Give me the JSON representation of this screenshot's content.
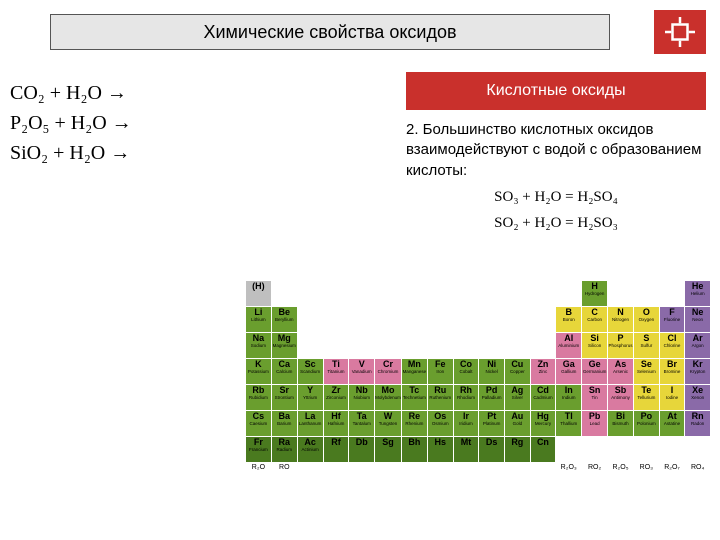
{
  "title": "Химические свойства оксидов",
  "reactions": [
    "CO₂ + H₂O →",
    "P₂O₅ + H₂O →",
    "SiO₂ + H₂O →"
  ],
  "acid_header": "Кислотные оксиды",
  "explain_text": "2. Большинство кислотных оксидов взаимодействуют с водой с образованием кислоты:",
  "equations": [
    "SO₃ + H₂O = H₂SO₄",
    "SO₂ + H₂O = H₂SO₃"
  ],
  "colors": {
    "green": "#6a9e2e",
    "dgreen": "#4a7a1f",
    "yellow": "#e7d63a",
    "red": "#d9534f",
    "purple": "#8a6aa8",
    "gray": "#bfbfbf",
    "pink": "#d97aa0",
    "blue": "#6aa0c4"
  },
  "ptable": [
    [
      {
        "s": "(H)",
        "c": "gray"
      },
      null,
      null,
      null,
      null,
      null,
      null,
      null,
      null,
      null,
      null,
      null,
      null,
      {
        "s": "H",
        "n": "Hydrogen",
        "c": "green"
      },
      null,
      null,
      null,
      {
        "s": "He",
        "n": "Helium",
        "c": "purple"
      }
    ],
    [
      {
        "s": "Li",
        "n": "Lithium",
        "c": "green"
      },
      {
        "s": "Be",
        "n": "Beryllium",
        "c": "green"
      },
      null,
      null,
      null,
      null,
      null,
      null,
      null,
      null,
      null,
      null,
      {
        "s": "B",
        "n": "Boron",
        "c": "yellow"
      },
      {
        "s": "C",
        "n": "Carbon",
        "c": "yellow"
      },
      {
        "s": "N",
        "n": "Nitrogen",
        "c": "yellow"
      },
      {
        "s": "O",
        "n": "Oxygen",
        "c": "yellow"
      },
      {
        "s": "F",
        "n": "Fluorine",
        "c": "purple"
      },
      {
        "s": "Ne",
        "n": "Neon",
        "c": "purple"
      }
    ],
    [
      {
        "s": "Na",
        "n": "Sodium",
        "c": "green"
      },
      {
        "s": "Mg",
        "n": "Magnesium",
        "c": "green"
      },
      null,
      null,
      null,
      null,
      null,
      null,
      null,
      null,
      null,
      null,
      {
        "s": "Al",
        "n": "Aluminium",
        "c": "pink"
      },
      {
        "s": "Si",
        "n": "Silicon",
        "c": "yellow"
      },
      {
        "s": "P",
        "n": "Phosphorus",
        "c": "yellow"
      },
      {
        "s": "S",
        "n": "Sulfur",
        "c": "yellow"
      },
      {
        "s": "Cl",
        "n": "Chlorine",
        "c": "yellow"
      },
      {
        "s": "Ar",
        "n": "Argon",
        "c": "purple"
      }
    ],
    [
      {
        "s": "K",
        "n": "Potassium",
        "c": "green"
      },
      {
        "s": "Ca",
        "n": "Calcium",
        "c": "green"
      },
      {
        "s": "Sc",
        "n": "Scandium",
        "c": "green"
      },
      {
        "s": "Ti",
        "n": "Titanium",
        "c": "pink"
      },
      {
        "s": "V",
        "n": "Vanadium",
        "c": "pink"
      },
      {
        "s": "Cr",
        "n": "Chromium",
        "c": "pink"
      },
      {
        "s": "Mn",
        "n": "Manganese",
        "c": "green"
      },
      {
        "s": "Fe",
        "n": "Iron",
        "c": "green"
      },
      {
        "s": "Co",
        "n": "Cobalt",
        "c": "green"
      },
      {
        "s": "Ni",
        "n": "Nickel",
        "c": "green"
      },
      {
        "s": "Cu",
        "n": "Copper",
        "c": "green"
      },
      {
        "s": "Zn",
        "n": "Zinc",
        "c": "pink"
      },
      {
        "s": "Ga",
        "n": "Gallium",
        "c": "pink"
      },
      {
        "s": "Ge",
        "n": "Germanium",
        "c": "pink"
      },
      {
        "s": "As",
        "n": "Arsenic",
        "c": "pink"
      },
      {
        "s": "Se",
        "n": "Selenium",
        "c": "yellow"
      },
      {
        "s": "Br",
        "n": "Bromine",
        "c": "yellow"
      },
      {
        "s": "Kr",
        "n": "Krypton",
        "c": "purple"
      }
    ],
    [
      {
        "s": "Rb",
        "n": "Rubidium",
        "c": "green"
      },
      {
        "s": "Sr",
        "n": "Strontium",
        "c": "green"
      },
      {
        "s": "Y",
        "n": "Yttrium",
        "c": "green"
      },
      {
        "s": "Zr",
        "n": "Zirconium",
        "c": "green"
      },
      {
        "s": "Nb",
        "n": "Niobium",
        "c": "green"
      },
      {
        "s": "Mo",
        "n": "Molybdenum",
        "c": "green"
      },
      {
        "s": "Tc",
        "n": "Technetium",
        "c": "green"
      },
      {
        "s": "Ru",
        "n": "Ruthenium",
        "c": "green"
      },
      {
        "s": "Rh",
        "n": "Rhodium",
        "c": "green"
      },
      {
        "s": "Pd",
        "n": "Palladium",
        "c": "green"
      },
      {
        "s": "Ag",
        "n": "Silver",
        "c": "green"
      },
      {
        "s": "Cd",
        "n": "Cadmium",
        "c": "green"
      },
      {
        "s": "In",
        "n": "Indium",
        "c": "green"
      },
      {
        "s": "Sn",
        "n": "Tin",
        "c": "pink"
      },
      {
        "s": "Sb",
        "n": "Antimony",
        "c": "pink"
      },
      {
        "s": "Te",
        "n": "Tellurium",
        "c": "yellow"
      },
      {
        "s": "I",
        "n": "Iodine",
        "c": "yellow"
      },
      {
        "s": "Xe",
        "n": "Xenon",
        "c": "purple"
      }
    ],
    [
      {
        "s": "Cs",
        "n": "Caesium",
        "c": "green"
      },
      {
        "s": "Ba",
        "n": "Barium",
        "c": "green"
      },
      {
        "s": "La",
        "n": "Lanthanum",
        "c": "green"
      },
      {
        "s": "Hf",
        "n": "Hafnium",
        "c": "green"
      },
      {
        "s": "Ta",
        "n": "Tantalum",
        "c": "green"
      },
      {
        "s": "W",
        "n": "Tungsten",
        "c": "green"
      },
      {
        "s": "Re",
        "n": "Rhenium",
        "c": "green"
      },
      {
        "s": "Os",
        "n": "Osmium",
        "c": "green"
      },
      {
        "s": "Ir",
        "n": "Iridium",
        "c": "green"
      },
      {
        "s": "Pt",
        "n": "Platinum",
        "c": "green"
      },
      {
        "s": "Au",
        "n": "Gold",
        "c": "green"
      },
      {
        "s": "Hg",
        "n": "Mercury",
        "c": "green"
      },
      {
        "s": "Tl",
        "n": "Thallium",
        "c": "green"
      },
      {
        "s": "Pb",
        "n": "Lead",
        "c": "pink"
      },
      {
        "s": "Bi",
        "n": "Bismuth",
        "c": "green"
      },
      {
        "s": "Po",
        "n": "Polonium",
        "c": "green"
      },
      {
        "s": "At",
        "n": "Astatine",
        "c": "green"
      },
      {
        "s": "Rn",
        "n": "Radon",
        "c": "purple"
      }
    ],
    [
      {
        "s": "Fr",
        "n": "Francium",
        "c": "dgreen"
      },
      {
        "s": "Ra",
        "n": "Radium",
        "c": "dgreen"
      },
      {
        "s": "Ac",
        "n": "Actinium",
        "c": "dgreen"
      },
      {
        "s": "Rf",
        "n": "",
        "c": "dgreen"
      },
      {
        "s": "Db",
        "n": "",
        "c": "dgreen"
      },
      {
        "s": "Sg",
        "n": "",
        "c": "dgreen"
      },
      {
        "s": "Bh",
        "n": "",
        "c": "dgreen"
      },
      {
        "s": "Hs",
        "n": "",
        "c": "dgreen"
      },
      {
        "s": "Mt",
        "n": "",
        "c": "dgreen"
      },
      {
        "s": "Ds",
        "n": "",
        "c": "dgreen"
      },
      {
        "s": "Rg",
        "n": "",
        "c": "dgreen"
      },
      {
        "s": "Cn",
        "n": "",
        "c": "dgreen"
      },
      null,
      null,
      null,
      null,
      null,
      null
    ]
  ],
  "oxide_row": [
    "R₂O",
    "RO",
    "",
    "",
    "",
    "",
    "",
    "",
    "",
    "",
    "",
    "",
    "R₂O₃",
    "RO₂",
    "R₂O₅",
    "RO₃",
    "R₂O₇",
    "RO₄"
  ]
}
